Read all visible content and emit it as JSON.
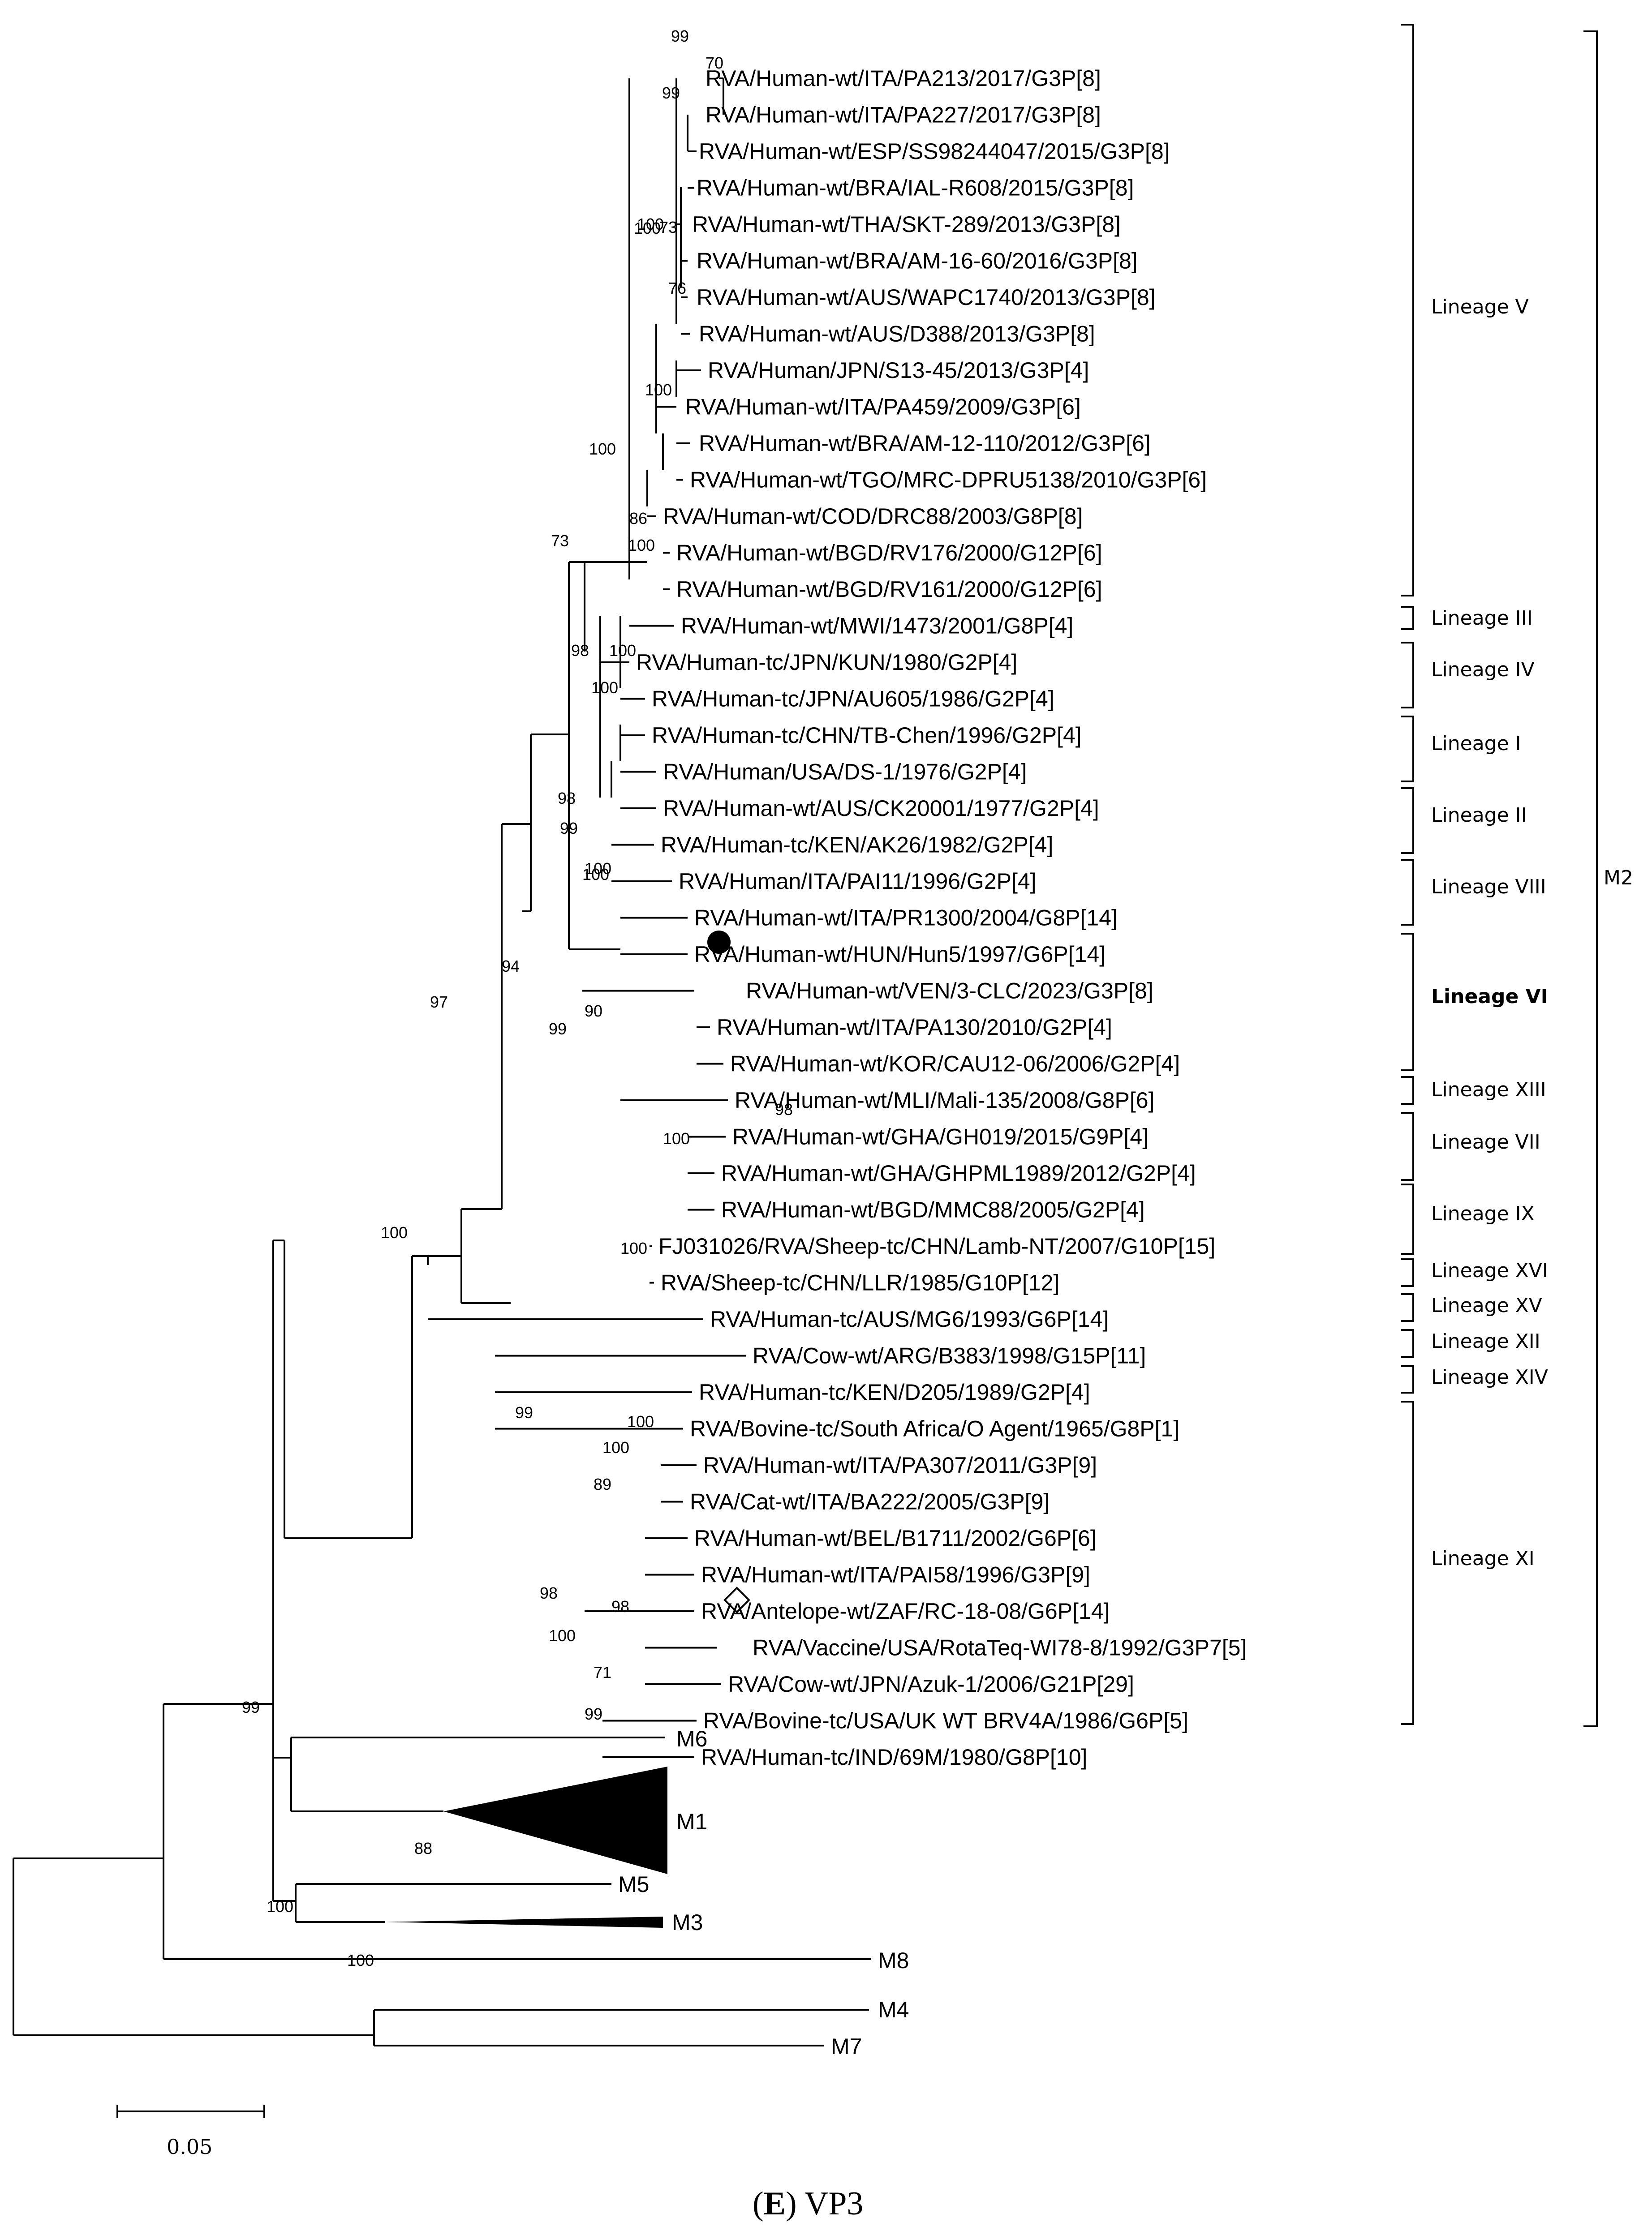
{
  "figure": {
    "caption_letter": "E",
    "caption_text": "VP3",
    "scale_label": "0.05",
    "clade_labels": {
      "m1": "M1",
      "m3": "M3",
      "m5": "M5",
      "m6": "M6",
      "m4": "M4",
      "m7": "M7",
      "m8": "M8",
      "m2": "M2"
    }
  },
  "taxa": [
    "RVA/Human-wt/ITA/PA213/2017/G3P[8]",
    "RVA/Human-wt/ITA/PA227/2017/G3P[8]",
    "RVA/Human-wt/ESP/SS98244047/2015/G3P[8]",
    "RVA/Human-wt/BRA/IAL-R608/2015/G3P[8]",
    "RVA/Human-wt/THA/SKT-289/2013/G3P[8]",
    "RVA/Human-wt/BRA/AM-16-60/2016/G3P[8]",
    "RVA/Human-wt/AUS/WAPC1740/2013/G3P[8]",
    "RVA/Human-wt/AUS/D388/2013/G3P[8]",
    "RVA/Human/JPN/S13-45/2013/G3P[4]",
    "RVA/Human-wt/ITA/PA459/2009/G3P[6]",
    "RVA/Human-wt/BRA/AM-12-110/2012/G3P[6]",
    "RVA/Human-wt/TGO/MRC-DPRU5138/2010/G3P[6]",
    "RVA/Human-wt/COD/DRC88/2003/G8P[8]",
    "RVA/Human-wt/BGD/RV176/2000/G12P[6]",
    "RVA/Human-wt/BGD/RV161/2000/G12P[6]",
    "RVA/Human-wt/MWI/1473/2001/G8P[4]",
    "RVA/Human-tc/JPN/KUN/1980/G2P[4]",
    "RVA/Human-tc/JPN/AU605/1986/G2P[4]",
    "RVA/Human-tc/CHN/TB-Chen/1996/G2P[4]",
    "RVA/Human/USA/DS-1/1976/G2P[4]",
    "RVA/Human-wt/AUS/CK20001/1977/G2P[4]",
    "RVA/Human-tc/KEN/AK26/1982/G2P[4]",
    "RVA/Human/ITA/PAI11/1996/G2P[4]",
    "RVA/Human-wt/ITA/PR1300/2004/G8P[14]",
    "RVA/Human-wt/HUN/Hun5/1997/G6P[14]",
    "RVA/Human-wt/VEN/3-CLC/2023/G3P[8]",
    "RVA/Human-wt/ITA/PA130/2010/G2P[4]",
    "RVA/Human-wt/KOR/CAU12-06/2006/G2P[4]",
    "RVA/Human-wt/MLI/Mali-135/2008/G8P[6]",
    "RVA/Human-wt/GHA/GH019/2015/G9P[4]",
    "RVA/Human-wt/GHA/GHPML1989/2012/G2P[4]",
    "RVA/Human-wt/BGD/MMC88/2005/G2P[4]",
    "FJ031026/RVA/Sheep-tc/CHN/Lamb-NT/2007/G10P[15]",
    "RVA/Sheep-tc/CHN/LLR/1985/G10P[12]",
    "RVA/Human-tc/AUS/MG6/1993/G6P[14]",
    "RVA/Cow-wt/ARG/B383/1998/G15P[11]",
    "RVA/Human-tc/KEN/D205/1989/G2P[4]",
    "RVA/Bovine-tc/South Africa/O Agent/1965/G8P[1]",
    "RVA/Human-wt/ITA/PA307/2011/G3P[9]",
    "RVA/Cat-wt/ITA/BA222/2005/G3P[9]",
    "RVA/Human-wt/BEL/B1711/2002/G6P[6]",
    "RVA/Human-wt/ITA/PAI58/1996/G3P[9]",
    "RVA/Antelope-wt/ZAF/RC-18-08/G6P[14]",
    "RVA/Vaccine/USA/RotaTeq-WI78-8/1992/G3P7[5]",
    "RVA/Cow-wt/JPN/Azuk-1/2006/G21P[29]",
    "RVA/Bovine-tc/USA/UK WT BRV4A/1986/G6P[5]",
    "RVA/Human-tc/IND/69M/1980/G8P[10]"
  ],
  "lineages": [
    "Lineage V",
    "Lineage III",
    "Lineage IV",
    "Lineage I",
    "Lineage II",
    "Lineage VIII",
    "Lineage VI",
    "Lineage XIII",
    "Lineage VII",
    "Lineage IX",
    "Lineage XVI",
    "Lineage XV",
    "Lineage XII",
    "Lineage XIV",
    "Lineage XI"
  ],
  "bootstraps": [
    "99",
    "70",
    "99",
    "100",
    "73",
    "76",
    "100",
    "100",
    "86",
    "100",
    "73",
    "100",
    "98",
    "100",
    "100",
    "98",
    "99",
    "100",
    "94",
    "100",
    "90",
    "99",
    "100",
    "98",
    "100",
    "100",
    "97",
    "100",
    "100",
    "89",
    "99",
    "98",
    "98",
    "100",
    "71",
    "99",
    "99",
    "88",
    "100",
    "100"
  ]
}
